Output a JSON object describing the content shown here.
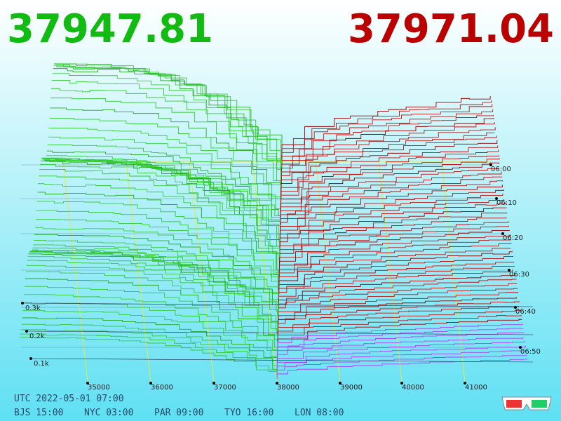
{
  "bid_price": "37947.81",
  "ask_price": "37971.04",
  "price_axis": [
    "35000",
    "36000",
    "37000",
    "38000",
    "39000",
    "40000",
    "41000"
  ],
  "time_axis": [
    "06:00",
    "06:10",
    "06:20",
    "06:30",
    "06:40",
    "06:50"
  ],
  "volume_axis": [
    "0.3k",
    "0.2k",
    "0.1k"
  ],
  "footer": {
    "utc": "UTC 2022-05-01 07:00",
    "zones": [
      "BJS 15:00",
      "NYC 03:00",
      "PAR 09:00",
      "TYO 16:00",
      "LON 08:00"
    ]
  }
}
